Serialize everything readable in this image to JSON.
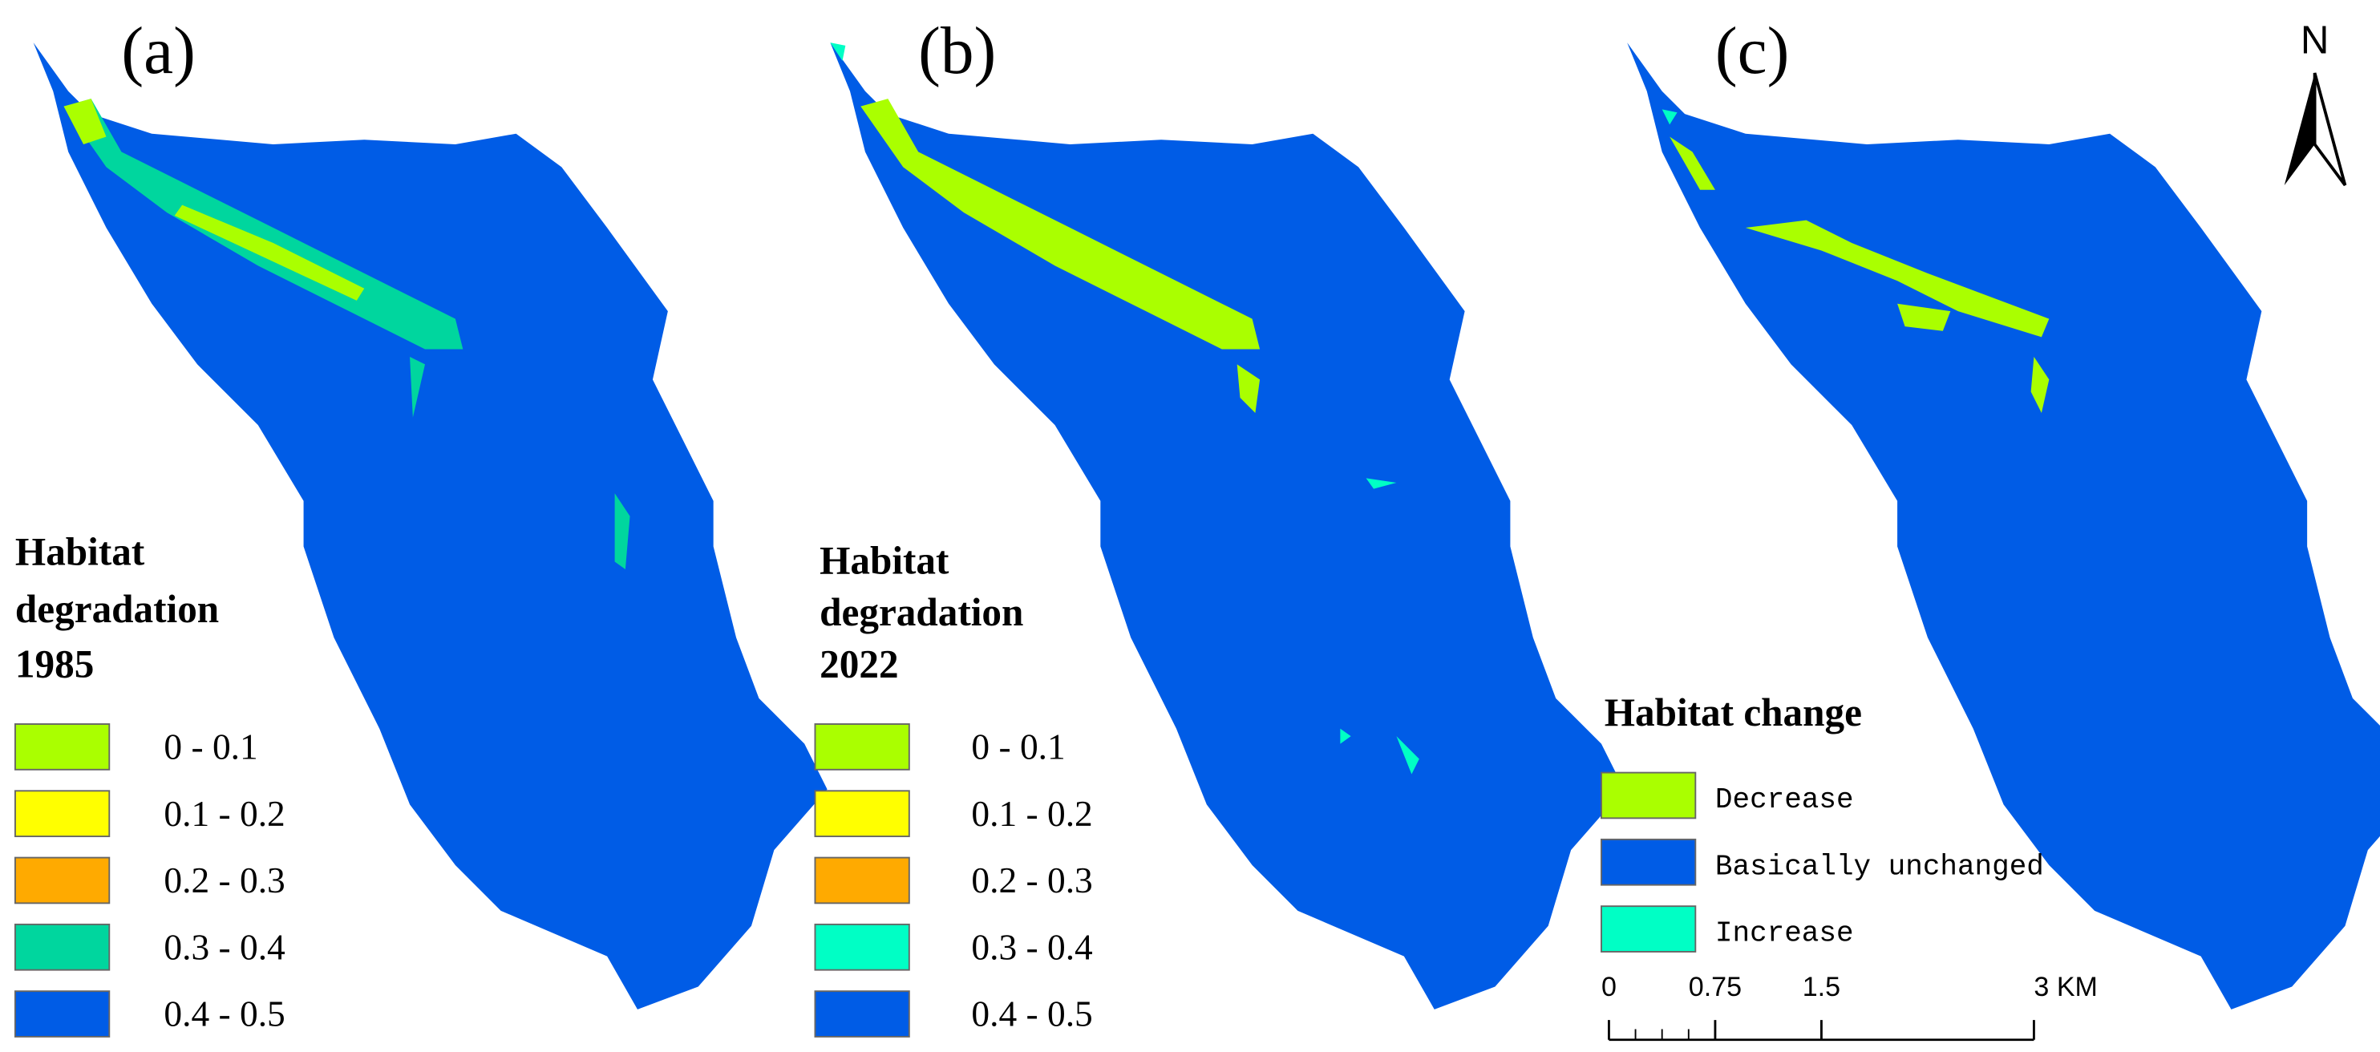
{
  "panels": [
    {
      "label": "(a)",
      "legend": {
        "title_lines": [
          "Habitat",
          "degradation",
          "1985"
        ],
        "items": [
          {
            "label": "0 - 0.1",
            "color": "#aaff00"
          },
          {
            "label": "0.1 - 0.2",
            "color": "#ffff00"
          },
          {
            "label": "0.2 - 0.3",
            "color": "#ffaa00"
          },
          {
            "label": "0.3 - 0.4",
            "color": "#00d69e"
          },
          {
            "label": "0.4 - 0.5",
            "color": "#005ce6"
          }
        ]
      }
    },
    {
      "label": "(b)",
      "legend": {
        "title_lines": [
          "Habitat",
          "degradation",
          "2022"
        ],
        "items": [
          {
            "label": "0 - 0.1",
            "color": "#aaff00"
          },
          {
            "label": "0.1 - 0.2",
            "color": "#ffff00"
          },
          {
            "label": "0.2 - 0.3",
            "color": "#ffaa00"
          },
          {
            "label": "0.3 - 0.4",
            "color": "#00ffc5"
          },
          {
            "label": "0.4 - 0.5",
            "color": "#005ce6"
          }
        ]
      }
    },
    {
      "label": "(c)",
      "legend": {
        "title_lines": [
          "Habitat change"
        ],
        "items": [
          {
            "label": "Decrease",
            "color": "#aaff00"
          },
          {
            "label": "Basically unchanged",
            "color": "#005ce6"
          },
          {
            "label": "Increase",
            "color": "#00ffc5"
          }
        ]
      }
    }
  ],
  "north": "N",
  "scale_bar": {
    "ticks": [
      {
        "value": 0,
        "label": "0"
      },
      {
        "value": 0.75,
        "label": "0.75"
      },
      {
        "value": 1.5,
        "label": "1.5"
      },
      {
        "value": 3,
        "label": "3 KM"
      }
    ]
  }
}
